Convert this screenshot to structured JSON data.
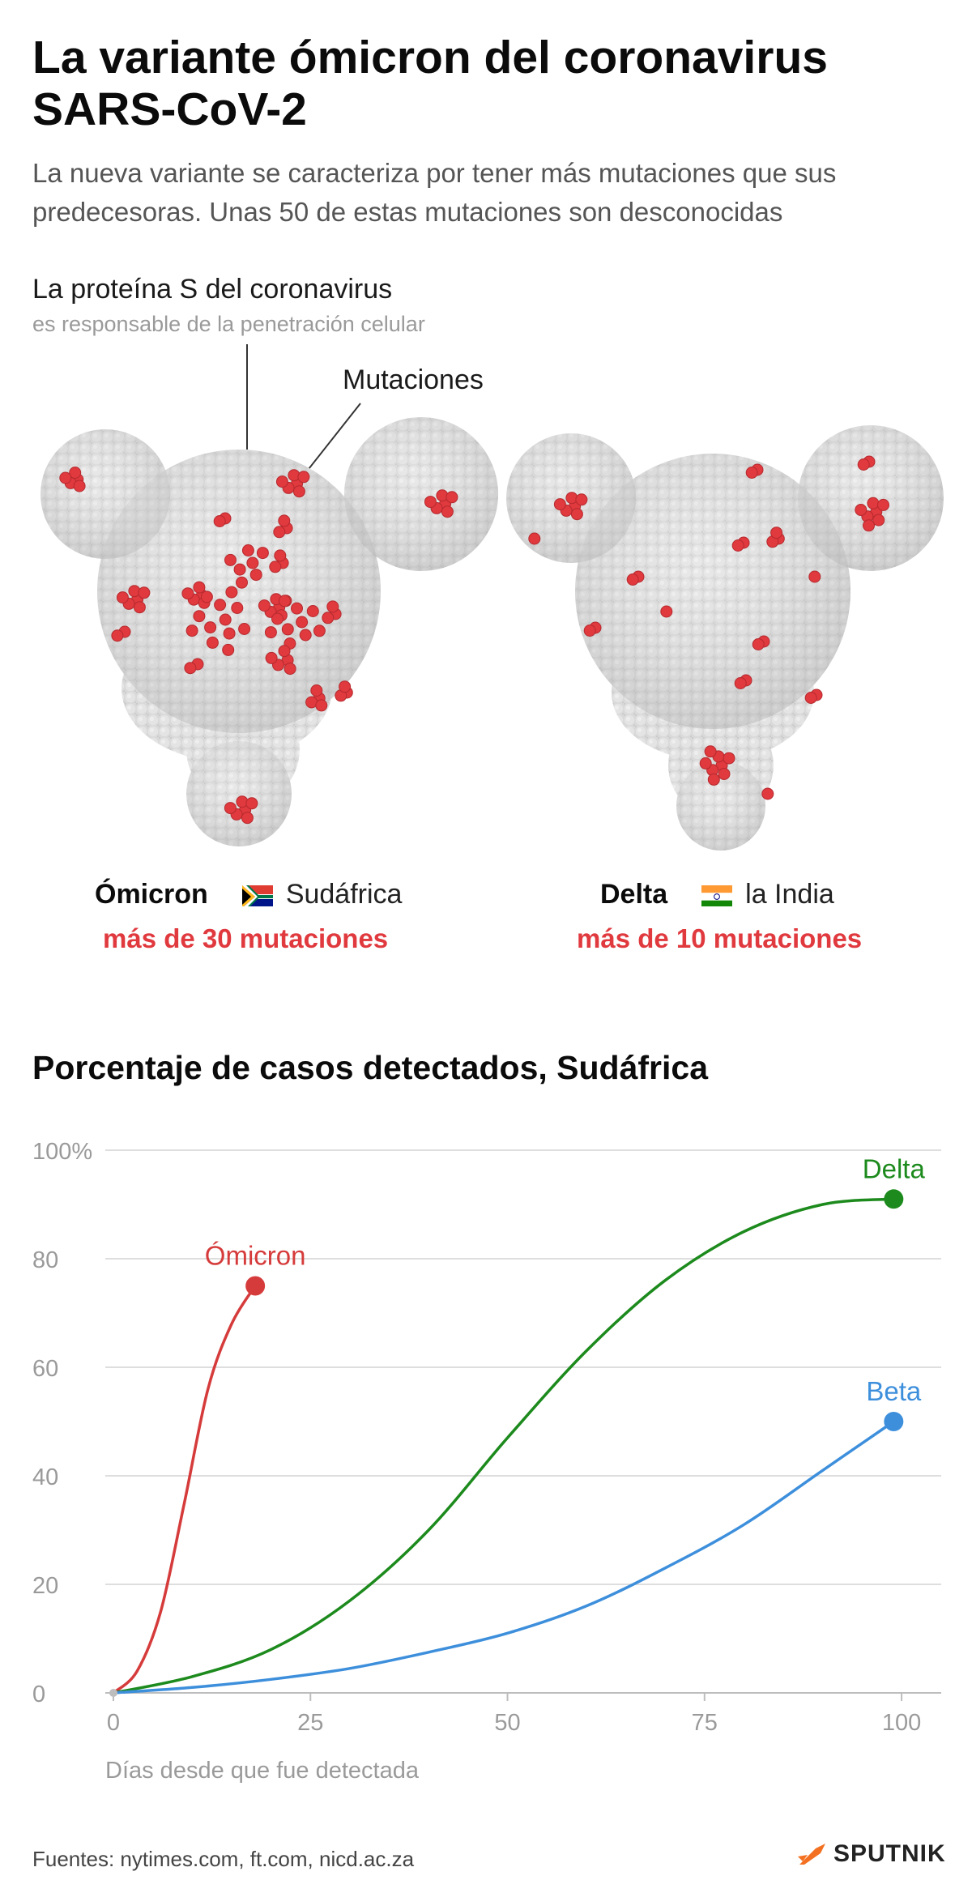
{
  "header": {
    "title": "La variante ómicron del coronavirus SARS-CoV-2",
    "subtitle": "La nueva variante se caracteriza por tener más mutaciones que sus predecesoras. Unas 50 de estas mutaciones son desconocidas"
  },
  "protein": {
    "title": "La proteína S del coronavirus",
    "subtitle": "es responsable de la penetración celular",
    "mutations_label": "Mutaciones"
  },
  "variants": [
    {
      "name": "Ómicron",
      "origin": "Sudáfrica",
      "mutations": "más de 30 mutaciones",
      "flag": "south-africa-flag"
    },
    {
      "name": "Delta",
      "origin": "la India",
      "mutations": "más de 10 mutaciones",
      "flag": "india-flag"
    }
  ],
  "colors": {
    "omicron": "#d63b3b",
    "delta": "#1c8a1c",
    "beta": "#3d8fdc",
    "mutation": "#e0393e",
    "protein": "#d6d6d6"
  },
  "chart_data": {
    "type": "line",
    "title": "Porcentaje de casos detectados, Sudáfrica",
    "xlabel": "Días desde que fue detectada",
    "ylabel": "",
    "xlim": [
      0,
      100
    ],
    "ylim": [
      0,
      100
    ],
    "x_ticks": [
      "0",
      "25",
      "50",
      "75",
      "100"
    ],
    "y_ticks": [
      "0",
      "20",
      "40",
      "60",
      "80",
      "100%"
    ],
    "grid": true,
    "series": [
      {
        "name": "Ómicron",
        "x": [
          0,
          3,
          6,
          9,
          12,
          15,
          18
        ],
        "y": [
          0,
          4,
          15,
          35,
          56,
          68,
          75
        ]
      },
      {
        "name": "Delta",
        "x": [
          0,
          10,
          20,
          30,
          40,
          50,
          60,
          70,
          80,
          90,
          99
        ],
        "y": [
          0,
          3,
          8,
          17,
          30,
          47,
          63,
          76,
          85,
          90,
          91
        ]
      },
      {
        "name": "Beta",
        "x": [
          0,
          10,
          20,
          30,
          40,
          50,
          60,
          70,
          80,
          90,
          99
        ],
        "y": [
          0,
          1,
          2.5,
          4.5,
          7.5,
          11,
          16,
          23,
          31,
          41,
          50
        ]
      }
    ]
  },
  "footer": {
    "sources": "Fuentes: nytimes.com, ft.com, nicd.ac.za",
    "brand": "SPUTNIK",
    "brand_icon": "sputnik-logo-icon"
  }
}
